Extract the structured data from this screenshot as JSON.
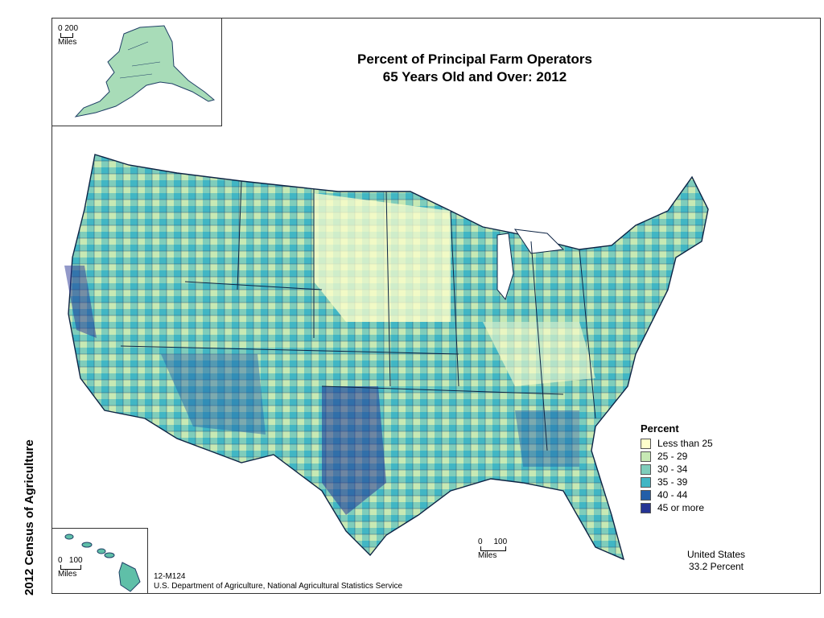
{
  "title": {
    "line1": "Percent of Principal Farm Operators",
    "line2": "65 Years Old and Over:  2012"
  },
  "side_title": "2012 Census of Agriculture",
  "legend": {
    "title": "Percent",
    "items": [
      {
        "label": "Less than 25",
        "color": "#ffffcc"
      },
      {
        "label": "25 - 29",
        "color": "#c7e9b4"
      },
      {
        "label": "30 - 34",
        "color": "#7fcdbb"
      },
      {
        "label": "35 - 39",
        "color": "#41b6c4"
      },
      {
        "label": "40 - 44",
        "color": "#225ea8"
      },
      {
        "label": "45 or more",
        "color": "#253494"
      }
    ]
  },
  "summary": {
    "line1": "United States",
    "line2": "33.2 Percent"
  },
  "credit": {
    "map_id": "12-M124",
    "source": "U.S. Department of Agriculture, National Agricultural Statistics Service"
  },
  "scales": {
    "alaska": {
      "zero": "0",
      "dist": "200",
      "unit": "Miles"
    },
    "hawaii": {
      "zero": "0",
      "dist": "100",
      "unit": "Miles"
    },
    "main": {
      "zero": "0",
      "dist": "100",
      "unit": "Miles"
    }
  },
  "colors": {
    "outline": "#1f3f66",
    "state_border": "#0d2444"
  }
}
